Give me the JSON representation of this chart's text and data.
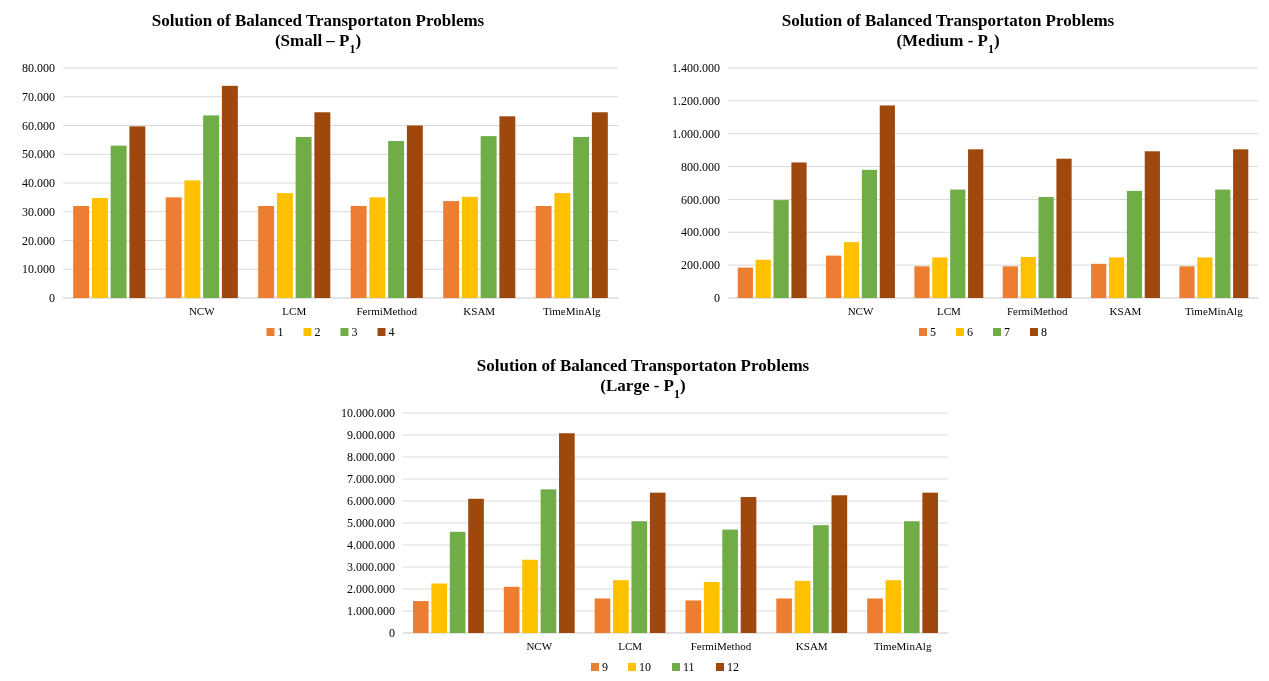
{
  "chart_data": [
    {
      "type": "bar",
      "title": "Solution of Balanced Transportaton Problems",
      "subtitle": "(Small – P$_{1}$)",
      "categories": [
        null,
        "NCW",
        "LCM",
        "FermiMethod",
        "KSAM",
        "TimeMinAlg"
      ],
      "series": [
        {
          "name": "1",
          "color": "#ed7d31",
          "values": [
            32000,
            35000,
            32000,
            32000,
            33700,
            32000
          ]
        },
        {
          "name": "2",
          "color": "#ffc000",
          "values": [
            34800,
            40900,
            36500,
            35000,
            35200,
            36500
          ]
        },
        {
          "name": "3",
          "color": "#70ad47",
          "values": [
            53000,
            63500,
            56000,
            54600,
            56300,
            56000
          ]
        },
        {
          "name": "4",
          "color": "#9e480e",
          "values": [
            59700,
            73800,
            64600,
            60000,
            63200,
            64600
          ]
        }
      ],
      "ylim": [
        0,
        80000
      ],
      "yticks": [
        {
          "value": 0,
          "label": "0"
        },
        {
          "value": 10000,
          "label": "10.000"
        },
        {
          "value": 20000,
          "label": "20.000"
        },
        {
          "value": 30000,
          "label": "30.000"
        },
        {
          "value": 40000,
          "label": "40.000"
        },
        {
          "value": 50000,
          "label": "50.000"
        },
        {
          "value": 60000,
          "label": "60.000"
        },
        {
          "value": 70000,
          "label": "70.000"
        },
        {
          "value": 80000,
          "label": "80.000"
        }
      ],
      "grid": "y",
      "legend": "bottom"
    },
    {
      "type": "bar",
      "title": "Solution of Balanced Transportaton Problems",
      "subtitle": "(Medium - P$_{1}$)",
      "categories": [
        null,
        "NCW",
        "LCM",
        "FermiMethod",
        "KSAM",
        "TimeMinAlg"
      ],
      "series": [
        {
          "name": "5",
          "color": "#ed7d31",
          "values": [
            185000,
            258000,
            193000,
            193000,
            208000,
            193000
          ]
        },
        {
          "name": "6",
          "color": "#ffc000",
          "values": [
            233000,
            340000,
            247000,
            250000,
            247000,
            247000
          ]
        },
        {
          "name": "7",
          "color": "#70ad47",
          "values": [
            596000,
            780000,
            660000,
            615000,
            652000,
            660000
          ]
        },
        {
          "name": "8",
          "color": "#9e480e",
          "values": [
            825000,
            1172000,
            905000,
            848000,
            893000,
            905000
          ]
        }
      ],
      "ylim": [
        0,
        1400000
      ],
      "yticks": [
        {
          "value": 0,
          "label": "0"
        },
        {
          "value": 200000,
          "label": "200.000"
        },
        {
          "value": 400000,
          "label": "400.000"
        },
        {
          "value": 600000,
          "label": "600.000"
        },
        {
          "value": 800000,
          "label": "800.000"
        },
        {
          "value": 1000000,
          "label": "1.000.000"
        },
        {
          "value": 1200000,
          "label": "1.200.000"
        },
        {
          "value": 1400000,
          "label": "1.400.000"
        }
      ],
      "grid": "y",
      "legend": "bottom"
    },
    {
      "type": "bar",
      "title": "Solution of Balanced Transportaton Problems",
      "subtitle": "(Large - P$_{1}$)",
      "categories": [
        null,
        "NCW",
        "LCM",
        "FermiMethod",
        "KSAM",
        "TimeMinAlg"
      ],
      "series": [
        {
          "name": "9",
          "color": "#ed7d31",
          "values": [
            1450000,
            2100000,
            1570000,
            1480000,
            1570000,
            1570000
          ]
        },
        {
          "name": "10",
          "color": "#ffc000",
          "values": [
            2250000,
            3330000,
            2400000,
            2320000,
            2370000,
            2400000
          ]
        },
        {
          "name": "11",
          "color": "#70ad47",
          "values": [
            4600000,
            6530000,
            5080000,
            4700000,
            4900000,
            5080000
          ]
        },
        {
          "name": "12",
          "color": "#9e480e",
          "values": [
            6100000,
            9080000,
            6380000,
            6180000,
            6260000,
            6380000
          ]
        }
      ],
      "ylim": [
        0,
        10000000
      ],
      "yticks": [
        {
          "value": 0,
          "label": "0"
        },
        {
          "value": 1000000,
          "label": "1.000.000"
        },
        {
          "value": 2000000,
          "label": "2.000.000"
        },
        {
          "value": 3000000,
          "label": "3.000.000"
        },
        {
          "value": 4000000,
          "label": "4.000.000"
        },
        {
          "value": 5000000,
          "label": "5.000.000"
        },
        {
          "value": 6000000,
          "label": "6.000.000"
        },
        {
          "value": 7000000,
          "label": "7.000.000"
        },
        {
          "value": 8000000,
          "label": "8.000.000"
        },
        {
          "value": 9000000,
          "label": "9.000.000"
        },
        {
          "value": 10000000,
          "label": "10.000.000"
        }
      ],
      "grid": "y",
      "legend": "bottom"
    }
  ]
}
